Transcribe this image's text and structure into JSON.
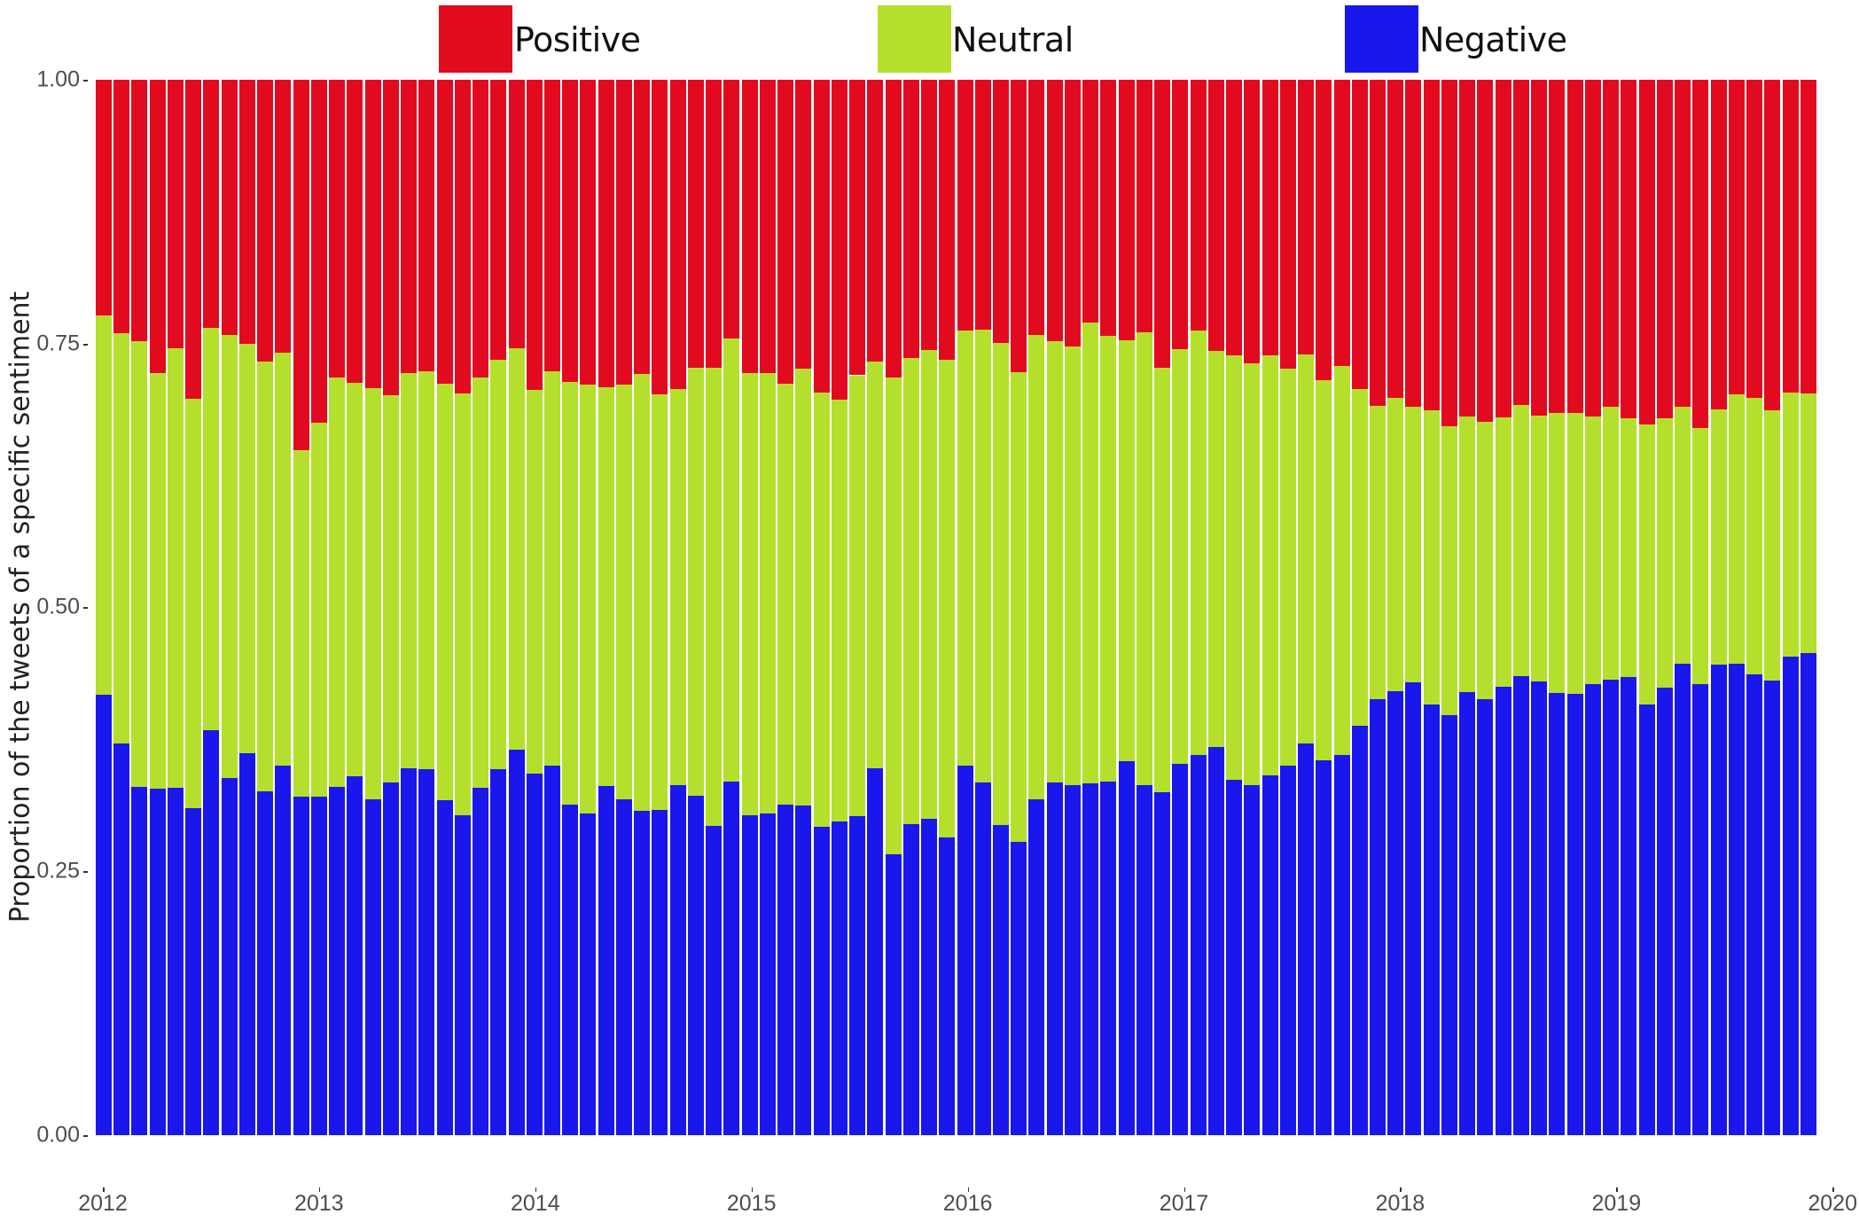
{
  "chart_data": {
    "type": "bar",
    "stacked": true,
    "title": "",
    "xlabel": "",
    "ylabel": "Proportion of the tweets of a specific sentiment",
    "ylim": [
      0,
      1
    ],
    "yticks": [
      "0.00",
      "0.25",
      "0.50",
      "0.75",
      "1.00"
    ],
    "ytick_values": [
      0,
      0.25,
      0.5,
      0.75,
      1.0
    ],
    "xticks": [
      "2012",
      "2013",
      "2014",
      "2015",
      "2016",
      "2017",
      "2018",
      "2019",
      "2020"
    ],
    "x_start": "2012-01",
    "x_end": "2019-12",
    "period": "monthly",
    "grid": false,
    "legend_position": "top",
    "legend": [
      {
        "name": "Positive",
        "color": "#e20a1f"
      },
      {
        "name": "Neutral",
        "color": "#b5df2d"
      },
      {
        "name": "Negative",
        "color": "#1a17ec"
      }
    ],
    "series": [
      {
        "name": "Negative",
        "color": "#1a17ec",
        "values": [
          0.417,
          0.371,
          0.33,
          0.328,
          0.329,
          0.31,
          0.384,
          0.338,
          0.362,
          0.326,
          0.35,
          0.321,
          0.321,
          0.33,
          0.34,
          0.318,
          0.334,
          0.348,
          0.347,
          0.317,
          0.303,
          0.329,
          0.347,
          0.365,
          0.343,
          0.35,
          0.313,
          0.305,
          0.331,
          0.318,
          0.307,
          0.308,
          0.332,
          0.322,
          0.293,
          0.335,
          0.303,
          0.305,
          0.313,
          0.312,
          0.292,
          0.297,
          0.302,
          0.348,
          0.266,
          0.295,
          0.3,
          0.282,
          0.35,
          0.334,
          0.294,
          0.278,
          0.318,
          0.334,
          0.332,
          0.333,
          0.335,
          0.354,
          0.332,
          0.325,
          0.352,
          0.36,
          0.368,
          0.337,
          0.332,
          0.341,
          0.35,
          0.371,
          0.355,
          0.36,
          0.388,
          0.413,
          0.421,
          0.429,
          0.408,
          0.398,
          0.42,
          0.413,
          0.425,
          0.435,
          0.43,
          0.419,
          0.418,
          0.427,
          0.432,
          0.434,
          0.408,
          0.424,
          0.447,
          0.427,
          0.446,
          0.447,
          0.437,
          0.431,
          0.453,
          0.457
        ]
      },
      {
        "name": "Neutral",
        "color": "#b5df2d",
        "values": [
          0.36,
          0.389,
          0.422,
          0.394,
          0.417,
          0.388,
          0.381,
          0.42,
          0.388,
          0.407,
          0.391,
          0.328,
          0.354,
          0.388,
          0.373,
          0.39,
          0.367,
          0.374,
          0.377,
          0.395,
          0.4,
          0.389,
          0.388,
          0.381,
          0.363,
          0.374,
          0.401,
          0.406,
          0.378,
          0.393,
          0.414,
          0.394,
          0.375,
          0.405,
          0.434,
          0.42,
          0.419,
          0.417,
          0.399,
          0.414,
          0.412,
          0.4,
          0.418,
          0.385,
          0.452,
          0.441,
          0.444,
          0.453,
          0.412,
          0.429,
          0.457,
          0.445,
          0.44,
          0.418,
          0.415,
          0.437,
          0.422,
          0.399,
          0.429,
          0.402,
          0.393,
          0.402,
          0.375,
          0.402,
          0.399,
          0.398,
          0.376,
          0.369,
          0.36,
          0.369,
          0.319,
          0.278,
          0.278,
          0.261,
          0.279,
          0.274,
          0.261,
          0.263,
          0.255,
          0.257,
          0.252,
          0.265,
          0.266,
          0.254,
          0.258,
          0.245,
          0.265,
          0.255,
          0.243,
          0.243,
          0.242,
          0.255,
          0.262,
          0.256,
          0.251,
          0.246
        ]
      },
      {
        "name": "Positive",
        "color": "#e20a1f",
        "values": [
          0.223,
          0.24,
          0.248,
          0.278,
          0.254,
          0.302,
          0.235,
          0.242,
          0.25,
          0.267,
          0.259,
          0.351,
          0.325,
          0.282,
          0.287,
          0.292,
          0.299,
          0.278,
          0.276,
          0.288,
          0.297,
          0.282,
          0.265,
          0.254,
          0.294,
          0.276,
          0.286,
          0.289,
          0.291,
          0.289,
          0.279,
          0.298,
          0.293,
          0.273,
          0.273,
          0.245,
          0.278,
          0.278,
          0.288,
          0.274,
          0.296,
          0.303,
          0.28,
          0.267,
          0.282,
          0.264,
          0.256,
          0.265,
          0.238,
          0.237,
          0.249,
          0.277,
          0.242,
          0.248,
          0.253,
          0.23,
          0.243,
          0.247,
          0.239,
          0.273,
          0.255,
          0.238,
          0.257,
          0.261,
          0.269,
          0.261,
          0.274,
          0.26,
          0.285,
          0.271,
          0.293,
          0.309,
          0.301,
          0.31,
          0.313,
          0.328,
          0.319,
          0.324,
          0.32,
          0.308,
          0.318,
          0.316,
          0.316,
          0.319,
          0.31,
          0.321,
          0.327,
          0.321,
          0.31,
          0.33,
          0.312,
          0.298,
          0.301,
          0.313,
          0.296,
          0.297
        ]
      }
    ]
  },
  "legend": {
    "positive_label": "Positive",
    "neutral_label": "Neutral",
    "negative_label": "Negative"
  },
  "axes": {
    "ylabel": "Proportion of the tweets of a specific sentiment",
    "yticks": [
      "0.00",
      "0.25",
      "0.50",
      "0.75",
      "1.00"
    ],
    "xticks": [
      "2012",
      "2013",
      "2014",
      "2015",
      "2016",
      "2017",
      "2018",
      "2019",
      "2020"
    ]
  }
}
